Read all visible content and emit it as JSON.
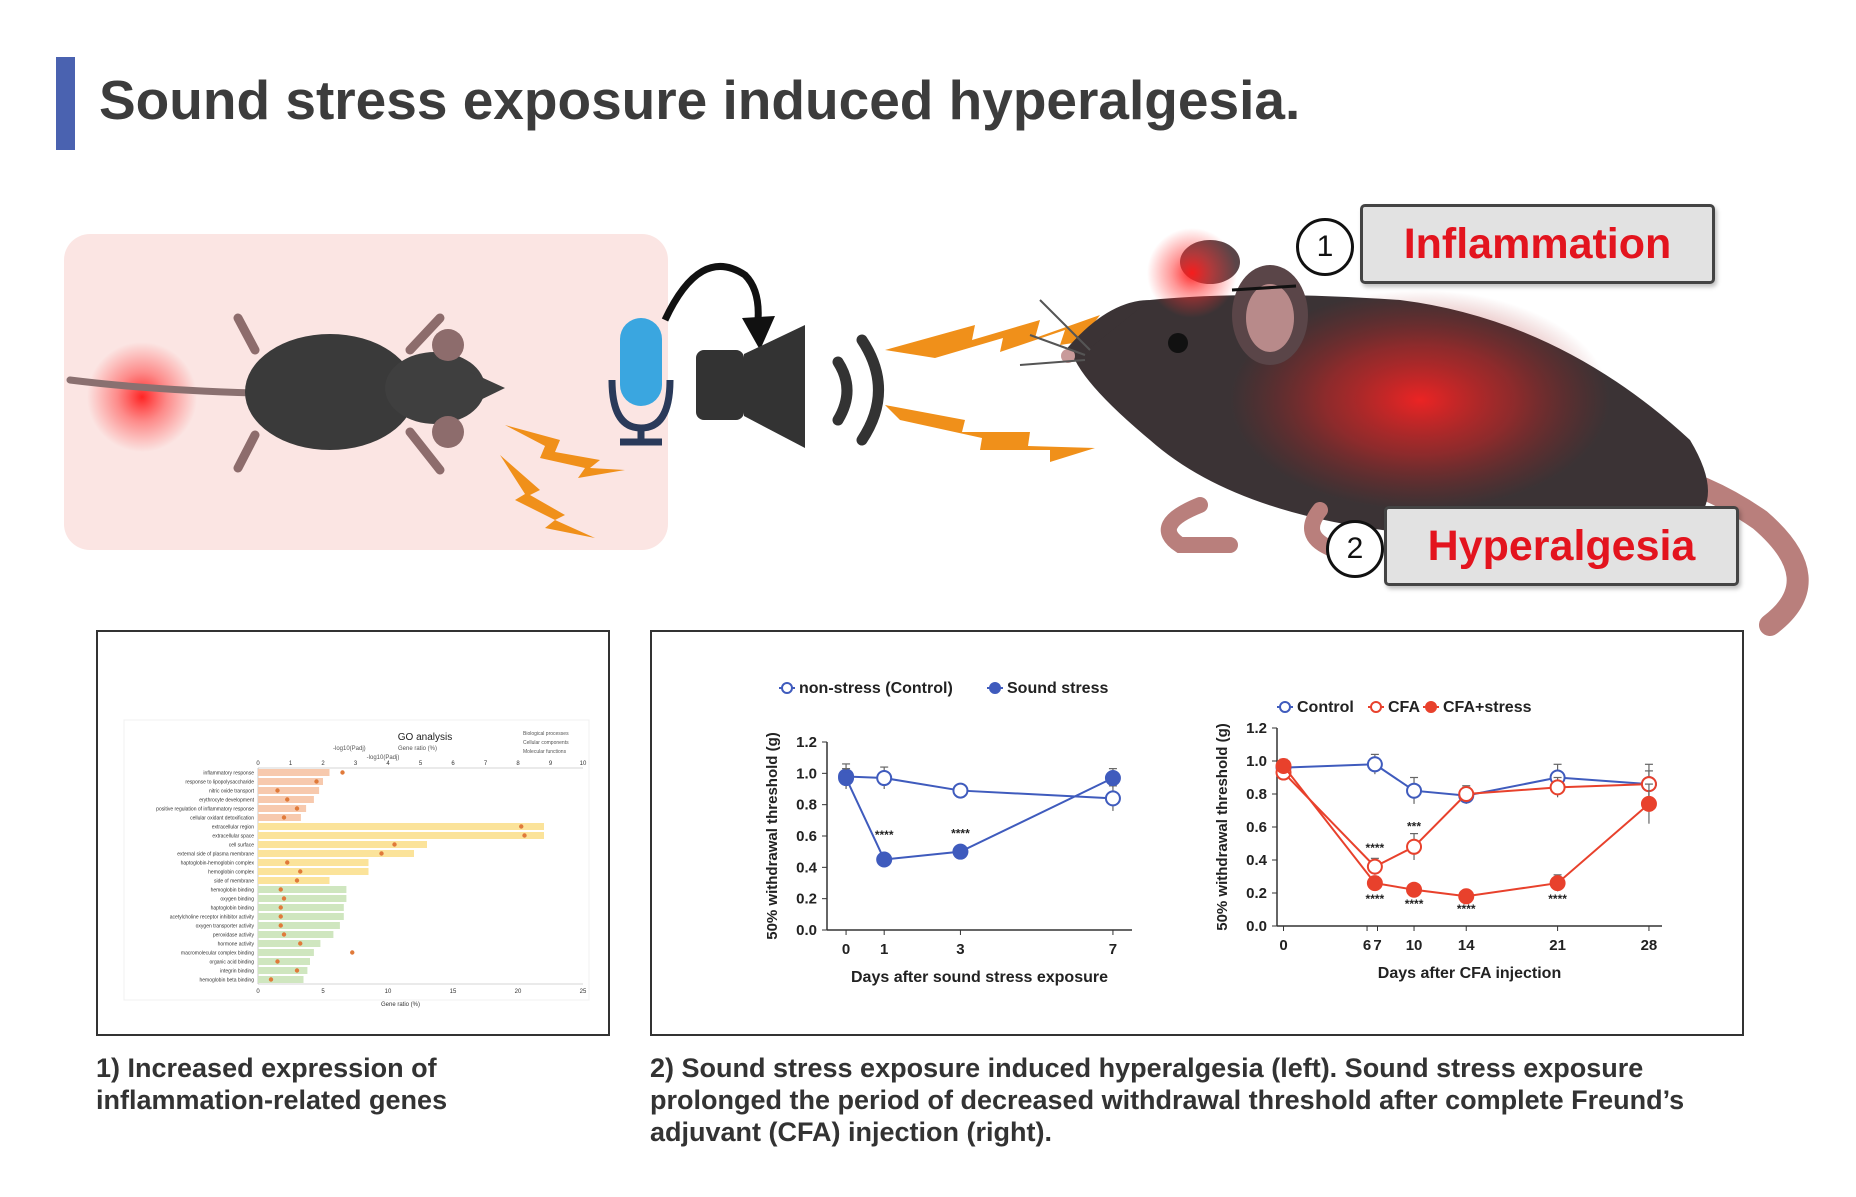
{
  "header": {
    "title": "Sound stress exposure induced hyperalgesia."
  },
  "callouts": [
    {
      "number": "1",
      "label": "Inflammation"
    },
    {
      "number": "2",
      "label": "Hyperalgesia"
    }
  ],
  "colors": {
    "accent_bar": "#4a62b0",
    "callout_text": "#e3141e",
    "control_blue": "#3f5bbd",
    "cfa_red": "#e8412c",
    "lightning": "#f0901a"
  },
  "icons": {
    "microphone": "microphone-icon",
    "speaker": "speaker-icon",
    "sound_waves": "sound-waves-icon",
    "lightning": "lightning-icon"
  },
  "captions": {
    "go": "1)  Increased expression of inflammation-related genes",
    "behavior": "2) Sound stress exposure induced hyperalgesia (left). Sound stress exposure prolonged the period of decreased withdrawal threshold after complete Freund’s adjuvant (CFA) injection (right)."
  },
  "chart_data": [
    {
      "type": "line",
      "title": "",
      "xlabel": "Days after sound stress exposure",
      "ylabel": "50% withdrawal threshold (g)",
      "x": [
        0,
        1,
        3,
        7
      ],
      "xticks": [
        "0",
        "1",
        "3",
        "7"
      ],
      "xlim": [
        -0.5,
        7.5
      ],
      "ylim": [
        0,
        1.2
      ],
      "yticks": [
        "0.0",
        "0.2",
        "0.4",
        "0.6",
        "0.8",
        "1.0",
        "1.2"
      ],
      "series": [
        {
          "name": "non-stress (Control)",
          "values": [
            0.98,
            0.97,
            0.89,
            0.84
          ],
          "errors": [
            0.08,
            0.07,
            0.04,
            0.08
          ],
          "color": "#3f5bbd",
          "filled": false
        },
        {
          "name": "Sound stress",
          "values": [
            0.97,
            0.45,
            0.5,
            0.97
          ],
          "errors": [
            0.06,
            0.04,
            0.03,
            0.06
          ],
          "color": "#3f5bbd",
          "filled": true
        }
      ],
      "annotations": [
        {
          "x": 1,
          "y": 0.58,
          "text": "****"
        },
        {
          "x": 3,
          "y": 0.59,
          "text": "****"
        }
      ]
    },
    {
      "type": "line",
      "title": "",
      "xlabel": "Days after CFA injection",
      "ylabel": "50% withdrawal threshold (g)",
      "x": [
        0,
        7,
        10,
        14,
        21,
        28
      ],
      "xticks": [
        "0",
        "6",
        "7",
        "10",
        "14",
        "21",
        "28"
      ],
      "xtick_values": [
        0,
        6.4,
        7.2,
        10,
        14,
        21,
        28
      ],
      "xlim": [
        -0.5,
        29
      ],
      "ylim": [
        0,
        1.2
      ],
      "yticks": [
        "0.0",
        "0.2",
        "0.4",
        "0.6",
        "0.8",
        "1.0",
        "1.2"
      ],
      "series": [
        {
          "name": "Control",
          "values": [
            0.96,
            0.98,
            0.82,
            0.79,
            0.9,
            0.86
          ],
          "errors": [
            0.05,
            0.06,
            0.08,
            0.05,
            0.08,
            0.12
          ],
          "color": "#3f5bbd",
          "filled": false
        },
        {
          "name": "CFA",
          "values": [
            0.93,
            0.36,
            0.48,
            0.8,
            0.84,
            0.86
          ],
          "errors": [
            0.04,
            0.05,
            0.08,
            0.05,
            0.06,
            0.08
          ],
          "color": "#e8412c",
          "filled": false
        },
        {
          "name": "CFA+stress",
          "values": [
            0.97,
            0.26,
            0.22,
            0.18,
            0.26,
            0.74
          ],
          "errors": [
            0.04,
            0.04,
            0.03,
            0.03,
            0.05,
            0.12
          ],
          "color": "#e8412c",
          "filled": true
        }
      ],
      "annotations": [
        {
          "x": 7,
          "y": 0.45,
          "text": "****"
        },
        {
          "x": 10,
          "y": 0.58,
          "text": "***"
        },
        {
          "x": 7,
          "y": 0.14,
          "text": "****"
        },
        {
          "x": 10,
          "y": 0.11,
          "text": "****"
        },
        {
          "x": 14,
          "y": 0.08,
          "text": "****"
        },
        {
          "x": 21,
          "y": 0.14,
          "text": "****"
        }
      ]
    },
    {
      "type": "bar",
      "title": "GO analysis",
      "xlabel": "Gene ratio (%)",
      "top_label": "-log10(Padj)",
      "legend": [
        "-log10(Padj)",
        "Gene ratio (%)"
      ],
      "category_legend": [
        "Biological processes",
        "Cellular components",
        "Molecular functions"
      ],
      "xlim": [
        0,
        25
      ],
      "xticks": [
        "0",
        "5",
        "10",
        "15",
        "20",
        "25"
      ],
      "top_xlim": [
        0,
        10
      ],
      "top_xticks": [
        "0",
        "1",
        "2",
        "3",
        "4",
        "5",
        "6",
        "7",
        "8",
        "9",
        "10"
      ],
      "categories": [
        "inflammatory response",
        "response to lipopolysaccharide",
        "nitric oxide transport",
        "erythrocyte development",
        "positive regulation of inflammatory response",
        "cellular oxidant detoxification",
        "extracellular region",
        "extracellular space",
        "cell surface",
        "external side of plasma membrane",
        "haptoglobin-hemoglobin complex",
        "hemoglobin complex",
        "side of membrane",
        "hemoglobin binding",
        "oxygen binding",
        "haptoglobin binding",
        "acetylcholine receptor inhibitor activity",
        "oxygen transporter activity",
        "peroxidase activity",
        "hormone activity",
        "macromolecular complex binding",
        "organic acid binding",
        "integrin binding",
        "hemoglobin beta binding"
      ],
      "groups": [
        "bp",
        "bp",
        "bp",
        "bp",
        "bp",
        "bp",
        "cc",
        "cc",
        "cc",
        "cc",
        "cc",
        "cc",
        "cc",
        "mf",
        "mf",
        "mf",
        "mf",
        "mf",
        "mf",
        "mf",
        "mf",
        "mf",
        "mf",
        "mf"
      ],
      "values": [
        5.5,
        5.0,
        4.7,
        4.3,
        3.7,
        3.3,
        22,
        22,
        13,
        12,
        8.5,
        8.5,
        5.5,
        6.8,
        6.8,
        6.6,
        6.6,
        6.3,
        5.8,
        4.8,
        4.3,
        4.0,
        3.8,
        3.5
      ],
      "neglog10_padj": [
        2.6,
        1.8,
        0.6,
        0.9,
        1.2,
        0.8,
        8.1,
        8.2,
        4.2,
        3.8,
        0.9,
        1.3,
        1.2,
        0.7,
        0.8,
        0.7,
        0.7,
        0.7,
        0.8,
        1.3,
        2.9,
        0.6,
        1.2,
        0.4
      ]
    }
  ]
}
